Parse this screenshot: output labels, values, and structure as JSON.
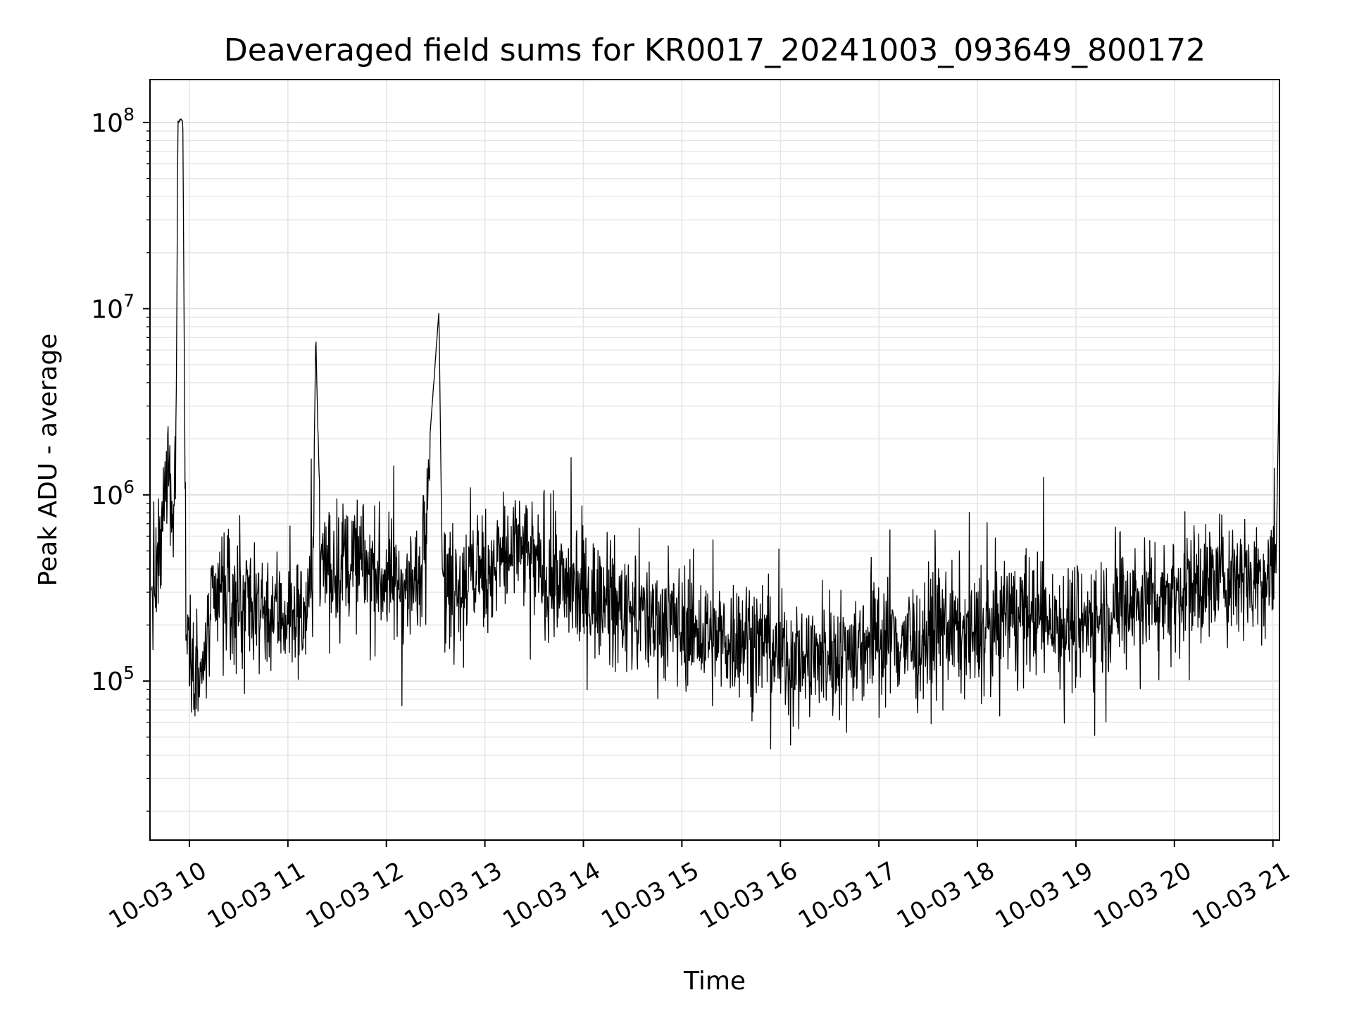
{
  "chart_data": {
    "type": "line",
    "title": "Deaveraged field sums for KR0017_20241003_093649_800172",
    "xlabel": "Time",
    "ylabel": "Peak ADU - average",
    "yscale": "log",
    "ylim": [
      14000,
      170000000
    ],
    "xlim": [
      "2024-10-03 09:36",
      "2024-10-03 21:04"
    ],
    "grid": "both (major and minor horizontal, major vertical)",
    "line_color": "#000000",
    "x_tick_labels": [
      "10-03 10",
      "10-03 11",
      "10-03 12",
      "10-03 13",
      "10-03 14",
      "10-03 15",
      "10-03 16",
      "10-03 17",
      "10-03 18",
      "10-03 19",
      "10-03 20",
      "10-03 21"
    ],
    "y_tick_labels": [
      {
        "base": "10",
        "exp": "5",
        "value": 100000
      },
      {
        "base": "10",
        "exp": "6",
        "value": 1000000
      },
      {
        "base": "10",
        "exp": "7",
        "value": 10000000
      },
      {
        "base": "10",
        "exp": "8",
        "value": 100000000
      }
    ],
    "series": [
      {
        "x": [
          "2024-10-03 09:37",
          "2024-10-03 09:42",
          "2024-10-03 09:46",
          "2024-10-03 09:48",
          "2024-10-03 09:50",
          "2024-10-03 09:52",
          "2024-10-03 09:53",
          "2024-10-03 09:55",
          "2024-10-03 09:56",
          "2024-10-03 09:58",
          "2024-10-03 10:00",
          "2024-10-03 10:04",
          "2024-10-03 10:08",
          "2024-10-03 10:12",
          "2024-10-03 10:20",
          "2024-10-03 10:30",
          "2024-10-03 10:45",
          "2024-10-03 11:00",
          "2024-10-03 11:10",
          "2024-10-03 11:15",
          "2024-10-03 11:17",
          "2024-10-03 11:20",
          "2024-10-03 11:40",
          "2024-10-03 12:00",
          "2024-10-03 12:20",
          "2024-10-03 12:32",
          "2024-10-03 12:34",
          "2024-10-03 12:36",
          "2024-10-03 13:00",
          "2024-10-03 13:20",
          "2024-10-03 13:40",
          "2024-10-03 14:00",
          "2024-10-03 14:20",
          "2024-10-03 14:40",
          "2024-10-03 15:00",
          "2024-10-03 15:20",
          "2024-10-03 15:40",
          "2024-10-03 16:00",
          "2024-10-03 16:20",
          "2024-10-03 16:40",
          "2024-10-03 17:00",
          "2024-10-03 17:20",
          "2024-10-03 17:40",
          "2024-10-03 18:00",
          "2024-10-03 18:20",
          "2024-10-03 18:40",
          "2024-10-03 19:00",
          "2024-10-03 19:20",
          "2024-10-03 19:40",
          "2024-10-03 20:00",
          "2024-10-03 20:20",
          "2024-10-03 20:40",
          "2024-10-03 20:55",
          "2024-10-03 21:02",
          "2024-10-03 21:04"
        ],
        "y": [
          300000,
          450000,
          1200000,
          1900000,
          500000,
          3000000,
          100000000,
          105000000,
          100000000,
          200000,
          180000,
          120000,
          100000,
          200000,
          300000,
          280000,
          250000,
          230000,
          220000,
          350000,
          7500000,
          400000,
          450000,
          350000,
          320000,
          9800000,
          400000,
          320000,
          400000,
          520000,
          350000,
          300000,
          250000,
          220000,
          200000,
          160000,
          180000,
          140000,
          130000,
          150000,
          180000,
          160000,
          200000,
          170000,
          230000,
          220000,
          200000,
          240000,
          280000,
          300000,
          350000,
          380000,
          380000,
          450000,
          5800000
        ]
      }
    ]
  }
}
